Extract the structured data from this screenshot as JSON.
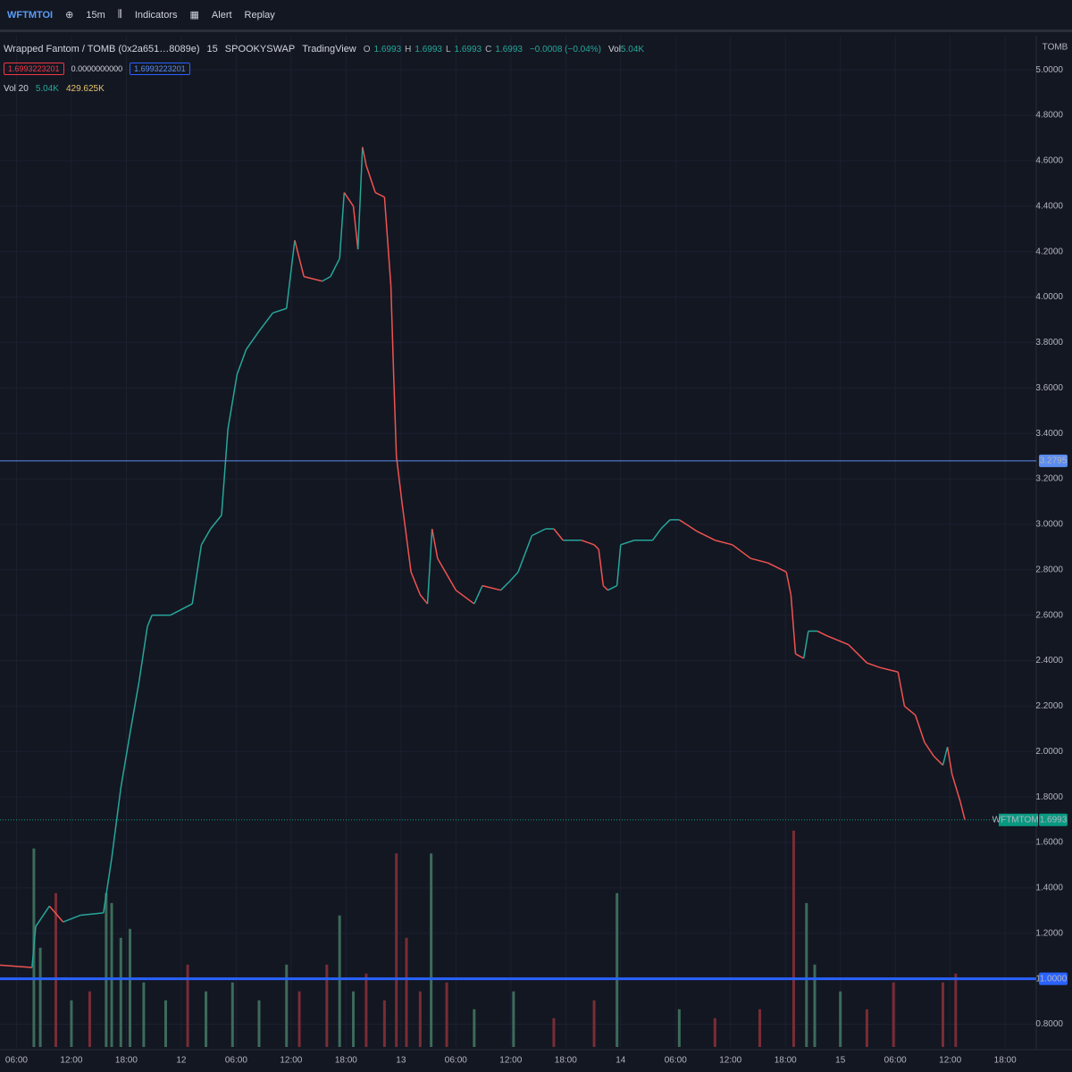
{
  "toolbar": {
    "symbol": "WFTMTOI",
    "interval": "15m",
    "indicators": "Indicators",
    "alert": "Alert",
    "replay": "Replay"
  },
  "legend": {
    "title": "Wrapped Fantom / TOMB (0x2a651…8089e)",
    "interval": "15",
    "exchange": "SPOOKYSWAP",
    "source": "TradingView",
    "ohlc": [
      {
        "label": "O",
        "value": "1.6993"
      },
      {
        "label": "H",
        "value": "1.6993"
      },
      {
        "label": "L",
        "value": "1.6993"
      },
      {
        "label": "C",
        "value": "1.6993"
      }
    ],
    "change": "−0.0008 (−0.04%)",
    "volume_label": "Vol",
    "volume_value": "5.04K",
    "inputs": [
      "1.6993223201",
      "0.0000000000",
      "1.6993223201"
    ],
    "vol_indicator": {
      "name": "Vol 20",
      "value": "5.04K",
      "ma": "429.625K"
    }
  },
  "chart_data": {
    "type": "line",
    "currency": "TOMB",
    "x": [
      -1.8,
      1.7,
      2.1,
      3.6,
      5.1,
      7.0,
      9.5,
      10.4,
      11.4,
      12.4,
      13.4,
      14.3,
      14.8,
      16.8,
      19.2,
      20.2,
      21.2,
      22.4,
      23.1,
      24.1,
      25.1,
      26.5,
      28.0,
      29.5,
      30.4,
      31.4,
      33.4,
      34.3,
      35.3,
      35.8,
      36.8,
      37.3,
      37.8,
      38.2,
      39.2,
      40.2,
      40.9,
      41.2,
      41.5,
      42.1,
      43.1,
      44.1,
      44.9,
      45.4,
      46.0,
      48.0,
      50.0,
      50.9,
      52.9,
      53.9,
      54.8,
      56.3,
      57.8,
      58.7,
      59.7,
      61.7,
      63.1,
      63.6,
      64.1,
      64.6,
      65.6,
      66.0,
      67.5,
      69.5,
      70.4,
      71.4,
      72.4,
      74.3,
      76.3,
      78.2,
      80.2,
      82.1,
      84.1,
      84.6,
      85.1,
      86.0,
      86.5,
      87.5,
      88.5,
      90.9,
      92.9,
      94.3,
      96.3,
      97.0,
      98.2,
      99.2,
      100.2,
      101.2,
      101.7,
      102.2,
      103.1,
      103.6
    ],
    "series": [
      {
        "name": "WFTMTOMB",
        "up_color": "#26a69a",
        "down_color": "#ef5350",
        "values": [
          1.06,
          1.05,
          1.23,
          1.32,
          1.25,
          1.28,
          1.29,
          1.53,
          1.84,
          2.08,
          2.31,
          2.55,
          2.6,
          2.6,
          2.65,
          2.91,
          2.98,
          3.04,
          3.42,
          3.66,
          3.77,
          3.85,
          3.93,
          3.95,
          4.25,
          4.09,
          4.07,
          4.09,
          4.17,
          4.46,
          4.4,
          4.21,
          4.66,
          4.58,
          4.46,
          4.44,
          4.05,
          3.66,
          3.3,
          3.1,
          2.79,
          2.69,
          2.65,
          2.98,
          2.85,
          2.71,
          2.65,
          2.73,
          2.71,
          2.75,
          2.79,
          2.95,
          2.98,
          2.98,
          2.93,
          2.93,
          2.91,
          2.89,
          2.73,
          2.71,
          2.73,
          2.91,
          2.93,
          2.93,
          2.98,
          3.02,
          3.02,
          2.97,
          2.93,
          2.91,
          2.85,
          2.83,
          2.79,
          2.69,
          2.43,
          2.41,
          2.53,
          2.53,
          2.51,
          2.47,
          2.39,
          2.37,
          2.35,
          2.2,
          2.16,
          2.04,
          1.98,
          1.94,
          2.02,
          1.9,
          1.78,
          1.7
        ]
      }
    ],
    "xlim": [
      -1.8,
      111.4
    ],
    "xticks": [
      {
        "value": 0,
        "label": "06:00"
      },
      {
        "value": 6,
        "label": "12:00"
      },
      {
        "value": 12,
        "label": "18:00"
      },
      {
        "value": 18,
        "label": "12"
      },
      {
        "value": 24,
        "label": "06:00"
      },
      {
        "value": 30,
        "label": "12:00"
      },
      {
        "value": 36,
        "label": "18:00"
      },
      {
        "value": 42,
        "label": "13"
      },
      {
        "value": 48,
        "label": "06:00"
      },
      {
        "value": 54,
        "label": "12:00"
      },
      {
        "value": 60,
        "label": "18:00"
      },
      {
        "value": 66,
        "label": "14"
      },
      {
        "value": 72,
        "label": "06:00"
      },
      {
        "value": 78,
        "label": "12:00"
      },
      {
        "value": 84,
        "label": "18:00"
      },
      {
        "value": 90,
        "label": "15"
      },
      {
        "value": 96,
        "label": "06:00"
      },
      {
        "value": 102,
        "label": "12:00"
      },
      {
        "value": 108,
        "label": "18:00"
      }
    ],
    "ylim": [
      0.7,
      5.15
    ],
    "yticks": [
      {
        "value": 0.8,
        "label": "0.8000"
      },
      {
        "value": 1.0,
        "label": "1.0000"
      },
      {
        "value": 1.2,
        "label": "1.2000"
      },
      {
        "value": 1.4,
        "label": "1.4000"
      },
      {
        "value": 1.6,
        "label": "1.6000"
      },
      {
        "value": 1.8,
        "label": "1.8000"
      },
      {
        "value": 2.0,
        "label": "2.0000"
      },
      {
        "value": 2.2,
        "label": "2.2000"
      },
      {
        "value": 2.4,
        "label": "2.4000"
      },
      {
        "value": 2.6,
        "label": "2.6000"
      },
      {
        "value": 2.8,
        "label": "2.8000"
      },
      {
        "value": 3.0,
        "label": "3.0000"
      },
      {
        "value": 3.2,
        "label": "3.2000"
      },
      {
        "value": 3.4,
        "label": "3.4000"
      },
      {
        "value": 3.6,
        "label": "3.6000"
      },
      {
        "value": 3.8,
        "label": "3.8000"
      },
      {
        "value": 4.0,
        "label": "4.0000"
      },
      {
        "value": 4.2,
        "label": "4.2000"
      },
      {
        "value": 4.4,
        "label": "4.4000"
      },
      {
        "value": 4.6,
        "label": "4.6000"
      },
      {
        "value": 4.8,
        "label": "4.8000"
      },
      {
        "value": 5.0,
        "label": "5.0000"
      }
    ],
    "grid": true,
    "hlines": [
      {
        "value": 3.2795,
        "label": "3.2795",
        "color": "#5b8def"
      },
      {
        "value": 1.0,
        "label": "1.0000",
        "color": "#2962ff"
      }
    ],
    "last_price": {
      "value": 1.6993,
      "label": "1.6993",
      "color": "#089981"
    },
    "volume": {
      "x": [
        1.9,
        2.6,
        4.3,
        6.0,
        8.0,
        9.8,
        10.4,
        11.4,
        12.4,
        13.9,
        16.3,
        18.7,
        20.7,
        23.6,
        26.5,
        29.5,
        30.9,
        33.9,
        35.3,
        36.8,
        38.2,
        40.2,
        41.5,
        42.6,
        44.1,
        45.3,
        47.0,
        50.0,
        54.3,
        58.7,
        63.1,
        65.6,
        72.4,
        76.3,
        81.2,
        84.9,
        86.3,
        87.2,
        90.0,
        92.9,
        95.8,
        101.2,
        102.6
      ],
      "values": [
        4000,
        2000,
        3100,
        940,
        1120,
        3100,
        2900,
        2200,
        2380,
        1300,
        940,
        1660,
        1120,
        1300,
        940,
        1660,
        1120,
        1660,
        2650,
        1120,
        1480,
        940,
        3900,
        2200,
        1120,
        3900,
        1300,
        760,
        1120,
        580,
        940,
        3100,
        760,
        580,
        760,
        4360,
        2900,
        1660,
        1120,
        760,
        1300,
        1300,
        1480
      ],
      "colors": [
        "#3d6b5a",
        "#3d6b5a",
        "#7a2c35",
        "#3d6b5a",
        "#7a2c35",
        "#3d6b5a",
        "#3d6b5a",
        "#3d6b5a",
        "#3d6b5a",
        "#3d6b5a",
        "#3d6b5a",
        "#7a2c35",
        "#3d6b5a",
        "#3d6b5a",
        "#3d6b5a",
        "#3d6b5a",
        "#7a2c35",
        "#7a2c35",
        "#3d6b5a",
        "#3d6b5a",
        "#7a2c35",
        "#7a2c35",
        "#7a2c35",
        "#7a2c35",
        "#7a2c35",
        "#3d6b5a",
        "#7a2c35",
        "#3d6b5a",
        "#3d6b5a",
        "#7a2c35",
        "#7a2c35",
        "#3d6b5a",
        "#3d6b5a",
        "#7a2c35",
        "#7a2c35",
        "#7a2c35",
        "#3d6b5a",
        "#3d6b5a",
        "#3d6b5a",
        "#7a2c35",
        "#7a2c35",
        "#7a2c35",
        "#7a2c35"
      ],
      "ylim": [
        0,
        4500
      ]
    }
  }
}
